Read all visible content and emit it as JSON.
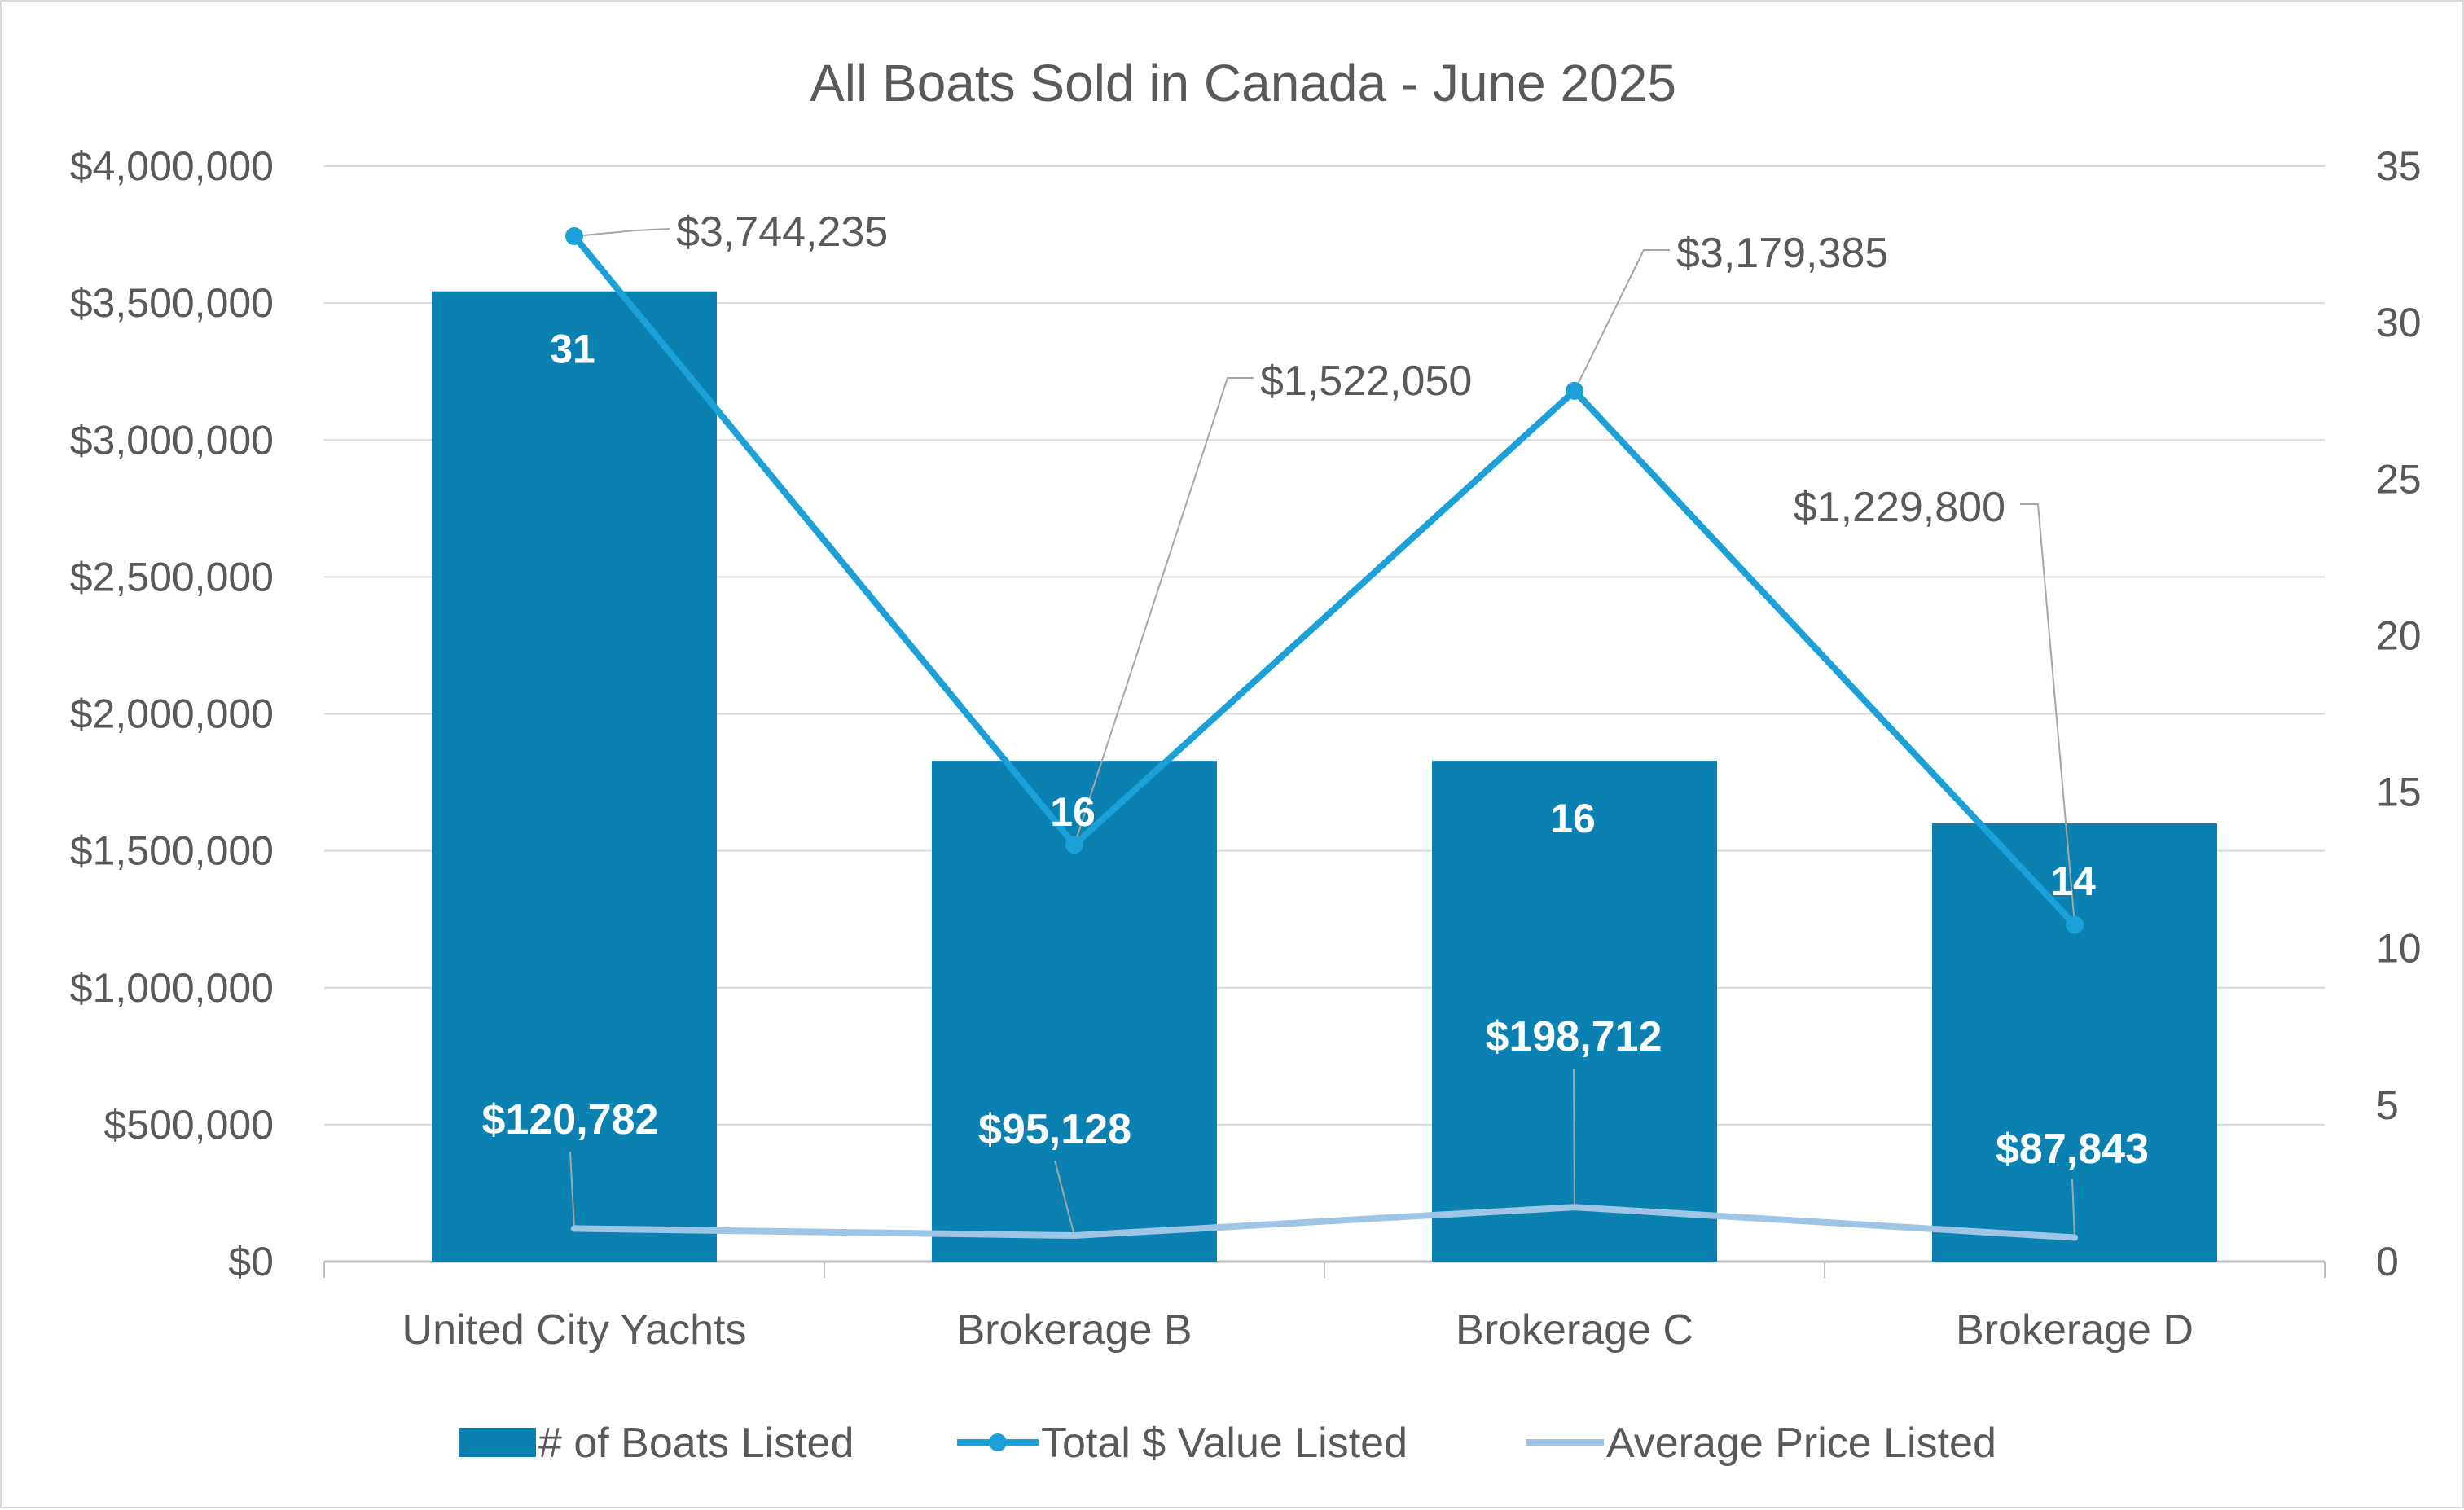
{
  "chart_data": {
    "type": "bar",
    "title": "All Boats Sold in Canada - June 2025",
    "categories": [
      "United City Yachts",
      "Brokerage B",
      "Brokerage C",
      "Brokerage D"
    ],
    "series": [
      {
        "name": "# of Boats Listed",
        "type": "bar",
        "axis": "right",
        "values": [
          31,
          16,
          16,
          14
        ],
        "labels": [
          "31",
          "16",
          "16",
          "14"
        ],
        "color": "#0b81b1"
      },
      {
        "name": "Total $ Value Listed",
        "type": "line",
        "axis": "left",
        "values": [
          3744235,
          1522050,
          3179385,
          1229800
        ],
        "labels": [
          "$3,744,235",
          "$1,522,050",
          "$3,179,385",
          "$1,229,800"
        ],
        "color": "#1ba0d7",
        "markers": true
      },
      {
        "name": "Average Price Listed",
        "type": "line",
        "axis": "left",
        "values": [
          120782,
          95128,
          198712,
          87843
        ],
        "labels": [
          "$120,782",
          "$95,128",
          "$198,712",
          "$87,843"
        ],
        "color": "#9fc5e6",
        "markers": false
      }
    ],
    "y_left": {
      "min": 0,
      "max": 4000000,
      "ticks": [
        "$0",
        "$500,000",
        "$1,000,000",
        "$1,500,000",
        "$2,000,000",
        "$2,500,000",
        "$3,000,000",
        "$3,500,000",
        "$4,000,000"
      ]
    },
    "y_right": {
      "min": 0,
      "max": 35,
      "ticks": [
        "0",
        "5",
        "10",
        "15",
        "20",
        "25",
        "30",
        "35"
      ]
    },
    "grid": true,
    "legend_position": "bottom"
  }
}
